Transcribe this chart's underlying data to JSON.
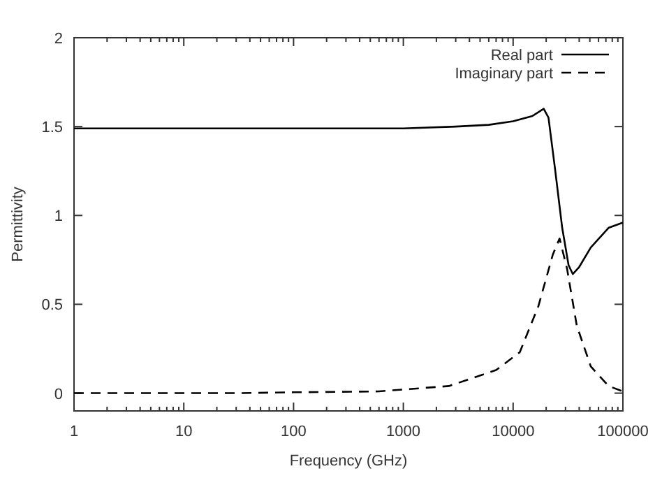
{
  "chart_data": {
    "type": "line",
    "xlabel": "Frequency (GHz)",
    "ylabel": "Permittivity",
    "log": "x",
    "grid": false,
    "legend": "top right",
    "xlim": [
      1,
      100000
    ],
    "xticks": [
      1,
      10,
      100,
      1000,
      10000,
      100000
    ],
    "ylim": [
      -0.1,
      2
    ],
    "yticks": [
      0,
      0.5,
      1,
      1.5,
      2
    ],
    "series": [
      {
        "name": "Real part",
        "color": "#000000",
        "line_style": "solid",
        "x": [
          1,
          10,
          100,
          1000,
          3000,
          6000,
          10000,
          15000,
          19000,
          21000,
          24000,
          28000,
          32000,
          35000,
          40000,
          51000,
          74000,
          100000
        ],
        "values": [
          1.49,
          1.49,
          1.49,
          1.49,
          1.5,
          1.51,
          1.53,
          1.56,
          1.6,
          1.55,
          1.27,
          0.93,
          0.72,
          0.67,
          0.71,
          0.82,
          0.93,
          0.96
        ]
      },
      {
        "name": "Imaginary part",
        "color": "#000000",
        "line_style": "dashed",
        "x": [
          1,
          10,
          30,
          100,
          600,
          2600,
          7000,
          11500,
          17000,
          23000,
          26500,
          31000,
          38000,
          51000,
          74000,
          100000
        ],
        "values": [
          0,
          0,
          0,
          0.005,
          0.01,
          0.04,
          0.13,
          0.23,
          0.49,
          0.78,
          0.87,
          0.7,
          0.38,
          0.15,
          0.04,
          0.01
        ]
      }
    ]
  }
}
